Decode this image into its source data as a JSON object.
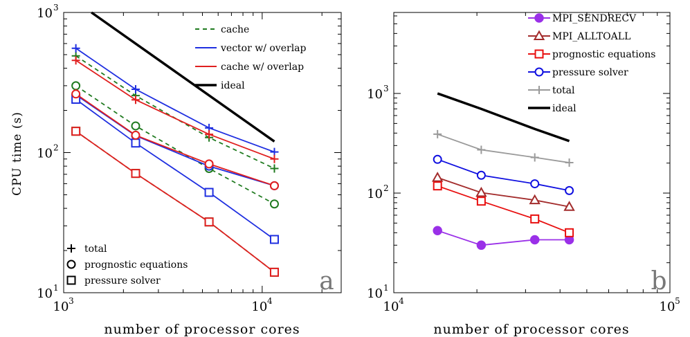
{
  "chart_data": [
    {
      "type": "line",
      "panel_label": "a",
      "xlabel": "number of processor cores",
      "ylabel": "CPU time (s)",
      "xscale": "log",
      "yscale": "log",
      "xlim": [
        1000,
        25000
      ],
      "ylim": [
        10,
        1000
      ],
      "x_ticks": [
        {
          "value": 1000,
          "label": "10",
          "exp": "3"
        },
        {
          "value": 10000,
          "label": "10",
          "exp": "4"
        }
      ],
      "y_ticks": [
        {
          "value": 10,
          "label": "10",
          "exp": "1"
        },
        {
          "value": 100,
          "label": "10",
          "exp": "2"
        },
        {
          "value": 1000,
          "label": "10",
          "exp": "3"
        }
      ],
      "legend_position": "top-right",
      "legend": [
        {
          "name": "cache",
          "color": "#1f7a1f",
          "dash": true
        },
        {
          "name": "vector w/ overlap",
          "color": "#1f2fe0",
          "dash": false
        },
        {
          "name": "cache w/ overlap",
          "color": "#e01f1f",
          "dash": false
        },
        {
          "name": "ideal",
          "color": "#000000",
          "dash": false,
          "width": 3.5
        }
      ],
      "marker_legend_position": "bottom-left",
      "marker_legend": [
        {
          "name": "total",
          "marker": "plus"
        },
        {
          "name": "prognostic equations",
          "marker": "circle"
        },
        {
          "name": "pressure solver",
          "marker": "square"
        }
      ],
      "x": [
        1152,
        2304,
        5400,
        11520
      ],
      "series": [
        {
          "config": "cache",
          "component": "total",
          "color": "#1f7a1f",
          "dash": true,
          "marker": "plus",
          "values": [
            490,
            255,
            128,
            77
          ]
        },
        {
          "config": "cache",
          "component": "prognostic equations",
          "color": "#1f7a1f",
          "dash": true,
          "marker": "circle",
          "values": [
            300,
            155,
            77,
            43
          ]
        },
        {
          "config": "cache",
          "component": "pressure solver",
          "color": "#1f7a1f",
          "dash": true,
          "marker": "square",
          "values": [
            142,
            71,
            32,
            14
          ]
        },
        {
          "config": "vector w/ overlap",
          "component": "total",
          "color": "#1f2fe0",
          "dash": false,
          "marker": "plus",
          "values": [
            555,
            283,
            150,
            101
          ]
        },
        {
          "config": "vector w/ overlap",
          "component": "prognostic equations",
          "color": "#1f2fe0",
          "dash": false,
          "marker": "circle",
          "values": [
            258,
            132,
            80,
            58
          ]
        },
        {
          "config": "vector w/ overlap",
          "component": "pressure solver",
          "color": "#1f2fe0",
          "dash": false,
          "marker": "square",
          "values": [
            240,
            117,
            52,
            24
          ]
        },
        {
          "config": "cache w/ overlap",
          "component": "total",
          "color": "#e01f1f",
          "dash": false,
          "marker": "plus",
          "values": [
            455,
            238,
            135,
            90
          ]
        },
        {
          "config": "cache w/ overlap",
          "component": "prognostic equations",
          "color": "#e01f1f",
          "dash": false,
          "marker": "circle",
          "values": [
            262,
            133,
            83,
            58
          ]
        },
        {
          "config": "cache w/ overlap",
          "component": "pressure solver",
          "color": "#e01f1f",
          "dash": false,
          "marker": "square",
          "values": [
            142,
            71,
            32,
            14
          ]
        },
        {
          "config": "ideal",
          "color": "#000000",
          "dash": false,
          "marker": "none",
          "width": 3.5,
          "x": [
            1380,
            11520
          ],
          "values": [
            1000,
            120
          ]
        }
      ]
    },
    {
      "type": "line",
      "panel_label": "b",
      "xlabel": "number of processor cores",
      "ylabel": "",
      "xscale": "log",
      "yscale": "log",
      "xlim": [
        10000,
        100000
      ],
      "ylim": [
        10,
        6500
      ],
      "x_ticks": [
        {
          "value": 10000,
          "label": "10",
          "exp": "4"
        },
        {
          "value": 100000,
          "label": "10",
          "exp": "5"
        }
      ],
      "y_ticks": [
        {
          "value": 10,
          "label": "10",
          "exp": "1"
        },
        {
          "value": 100,
          "label": "10",
          "exp": "2"
        },
        {
          "value": 1000,
          "label": "10",
          "exp": "3"
        }
      ],
      "legend_position": "top-right",
      "x": [
        14400,
        20736,
        32400,
        43200
      ],
      "series": [
        {
          "name": "MPI_SENDRECV",
          "color": "#9a30e8",
          "marker": "filled-circle",
          "values": [
            42,
            30,
            34,
            34
          ]
        },
        {
          "name": "MPI_ALLTOALL",
          "color": "#a32c2c",
          "marker": "triangle",
          "values": [
            143,
            101,
            85,
            73
          ]
        },
        {
          "name": "prognostic equations",
          "color": "#e81010",
          "marker": "square",
          "values": [
            118,
            83,
            55,
            40
          ]
        },
        {
          "name": "pressure solver",
          "color": "#1010e0",
          "marker": "circle",
          "values": [
            218,
            151,
            124,
            106
          ]
        },
        {
          "name": "total",
          "color": "#9a9a9a",
          "marker": "plus",
          "values": [
            390,
            272,
            228,
            202
          ]
        },
        {
          "name": "ideal",
          "color": "#000000",
          "marker": "none",
          "width": 3.5,
          "values": [
            1000,
            700,
            440,
            333
          ]
        }
      ]
    }
  ]
}
